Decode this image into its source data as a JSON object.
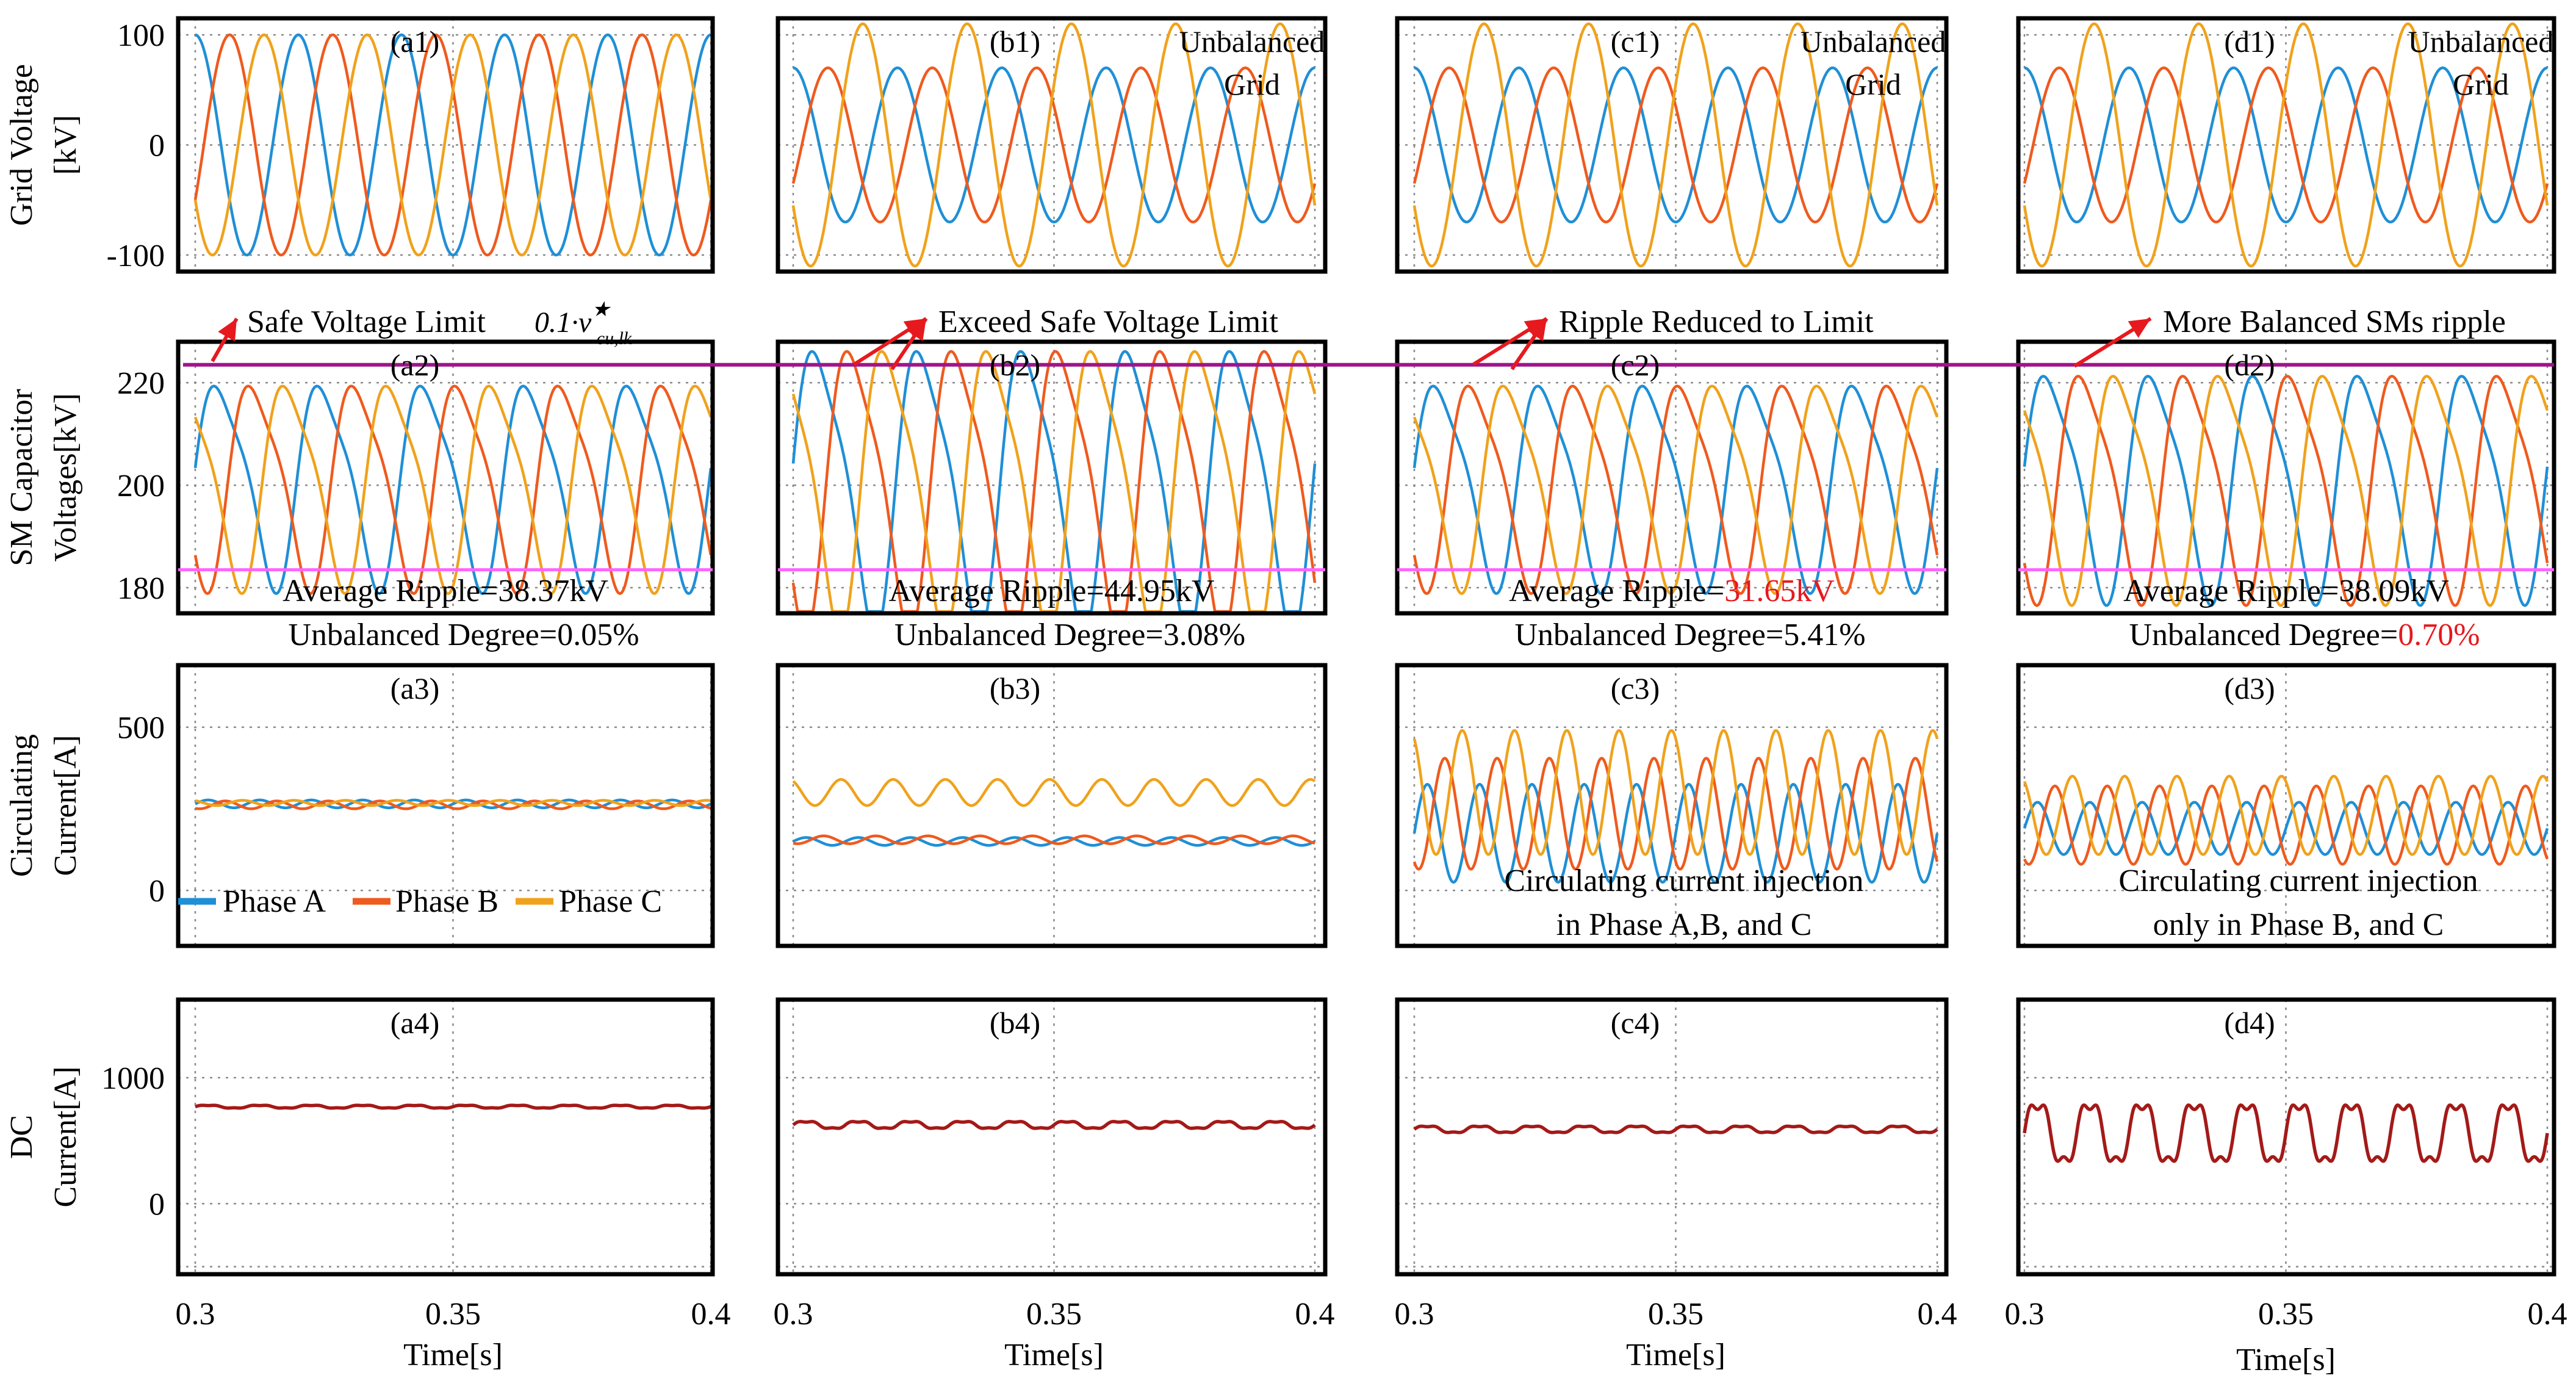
{
  "colors": {
    "phase_a": "#1f8fd6",
    "phase_b": "#ef5a1e",
    "phase_c": "#f0a21c",
    "dc_current": "#a31a18",
    "safe_limit": "#a0148c",
    "limit_band": "#ff63ff",
    "arrow": "#e6191e",
    "highlight": "#e6191e"
  },
  "chart_data": {
    "type": "line",
    "layout": "4 columns x 4 rows of time-domain waveform panels",
    "x": {
      "label": "Time[s]",
      "range": [
        0.3,
        0.4
      ],
      "ticks": [
        "0.3",
        "0.35",
        "0.4"
      ]
    },
    "legend": {
      "position": "bottom-left of panel a3",
      "entries": [
        "Phase A",
        "Phase B",
        "Phase C"
      ]
    },
    "rows": [
      {
        "ylabel": [
          "Grid Voltage",
          "[kV]"
        ],
        "ylim": [
          -115,
          115
        ],
        "yticks": [
          100,
          0,
          -100
        ],
        "ytick_labels": [
          "100",
          "0",
          "-100"
        ],
        "grid_y": [
          100,
          0,
          -100
        ]
      },
      {
        "ylabel": [
          "SM Capacitor",
          "Voltages[kV]"
        ],
        "ylim": [
          175,
          228
        ],
        "yticks": [
          220,
          200,
          180
        ],
        "ytick_labels": [
          "220",
          "200",
          "180"
        ],
        "grid_y": [
          220,
          200,
          180
        ]
      },
      {
        "ylabel": [
          "Circulating",
          "Current[A]"
        ],
        "ylim": [
          -170,
          690
        ],
        "yticks": [
          500,
          0
        ],
        "ytick_labels": [
          "500",
          "0"
        ],
        "grid_y": [
          500,
          0,
          -170
        ]
      },
      {
        "ylabel": [
          "DC",
          "Current[A]"
        ],
        "ylim": [
          -560,
          1620
        ],
        "yticks": [
          1000,
          0
        ],
        "ytick_labels": [
          "1000",
          "0"
        ],
        "grid_y": [
          1000,
          0,
          -500
        ]
      }
    ],
    "columns": [
      {
        "id": "a",
        "panel_labels": [
          "(a1)",
          "(a2)",
          "(a3)",
          "(a4)"
        ],
        "grid_note": "",
        "limit_note": "Safe Voltage Limit",
        "limit_formula": "0.1·v",
        "limit_formula_sup": "★",
        "limit_formula_sub": "cu,lk",
        "ripple_text": "Average Ripple=38.37kV",
        "unbalance_prefix": "Unbalanced Degree=",
        "unbalance_value": "0.05%",
        "unbalance_highlight": false,
        "circ_note": [],
        "grid_voltage_kV": {
          "A": {
            "amp": 100,
            "phase_deg": 90
          },
          "B": {
            "amp": 100,
            "phase_deg": -30
          },
          "C": {
            "amp": 100,
            "phase_deg": 210
          }
        },
        "cap_voltage_kV": {
          "mean": 201,
          "swing": 19
        },
        "circ_current_A": {
          "A": {
            "dc": 265,
            "ripple": 12
          },
          "B": {
            "dc": 262,
            "ripple": 12
          },
          "C": {
            "dc": 268,
            "ripple": 8
          }
        },
        "dc_current_A": {
          "dc": 770,
          "ripple": 12
        }
      },
      {
        "id": "b",
        "panel_labels": [
          "(b1)",
          "(b2)",
          "(b3)",
          "(b4)"
        ],
        "grid_note": "Unbalanced Grid",
        "limit_note": "Exceed Safe Voltage Limit",
        "ripple_text": "Average Ripple=44.95kV",
        "unbalance_prefix": "Unbalanced Degree=",
        "unbalance_value": "3.08%",
        "unbalance_highlight": false,
        "circ_note": [],
        "grid_voltage_kV": {
          "A": {
            "amp": 70,
            "phase_deg": 90
          },
          "B": {
            "amp": 70,
            "phase_deg": -30
          },
          "C": {
            "amp": 110,
            "phase_deg": 210
          }
        },
        "cap_voltage_kV": {
          "mean": 201,
          "swing": 26
        },
        "circ_current_A": {
          "A": {
            "dc": 150,
            "ripple": 12
          },
          "B": {
            "dc": 155,
            "ripple": 12
          },
          "C": {
            "dc": 300,
            "ripple": 40
          }
        },
        "dc_current_A": {
          "dc": 625,
          "ripple": 30
        }
      },
      {
        "id": "c",
        "panel_labels": [
          "(c1)",
          "(c2)",
          "(c3)",
          "(c4)"
        ],
        "grid_note": "Unbalanced Grid",
        "limit_note": "Ripple Reduced to Limit",
        "ripple_prefix": "Average Ripple=",
        "ripple_value": "31.65kV",
        "ripple_highlight": true,
        "unbalance_prefix": "Unbalanced Degree=",
        "unbalance_value": "5.41%",
        "unbalance_highlight": false,
        "circ_note": [
          "Circulating current injection",
          "in Phase A,B, and C"
        ],
        "grid_voltage_kV": {
          "A": {
            "amp": 70,
            "phase_deg": 90
          },
          "B": {
            "amp": 70,
            "phase_deg": -30
          },
          "C": {
            "amp": 110,
            "phase_deg": 210
          }
        },
        "cap_voltage_kV": {
          "mean": 201,
          "swing": 19
        },
        "circ_current_A": {
          "A": {
            "dc": 175,
            "ripple": 150
          },
          "B": {
            "dc": 235,
            "ripple": 170
          },
          "C": {
            "dc": 300,
            "ripple": 190
          }
        },
        "dc_current_A": {
          "dc": 590,
          "ripple": 28
        }
      },
      {
        "id": "d",
        "panel_labels": [
          "(d1)",
          "(d2)",
          "(d3)",
          "(d4)"
        ],
        "grid_note": "Unbalanced Grid",
        "limit_note": "More Balanced SMs ripple",
        "ripple_text": "Average Ripple=38.09kV",
        "unbalance_prefix": "Unbalanced Degree=",
        "unbalance_value": "0.70%",
        "unbalance_highlight": true,
        "circ_note": [
          "Circulating current injection",
          "only in Phase B, and C"
        ],
        "grid_voltage_kV": {
          "A": {
            "amp": 70,
            "phase_deg": 90
          },
          "B": {
            "amp": 70,
            "phase_deg": -30
          },
          "C": {
            "amp": 110,
            "phase_deg": 210
          }
        },
        "cap_voltage_kV": {
          "mean": 201,
          "swing": 21
        },
        "circ_current_A": {
          "A": {
            "dc": 190,
            "ripple": 80
          },
          "B": {
            "dc": 200,
            "ripple": 120
          },
          "C": {
            "dc": 230,
            "ripple": 120
          }
        },
        "dc_current_A": {
          "dc": 560,
          "ripple": 250
        }
      }
    ],
    "safe_voltage_limit_kV": 223.5,
    "lower_band_kV": 183.5
  }
}
